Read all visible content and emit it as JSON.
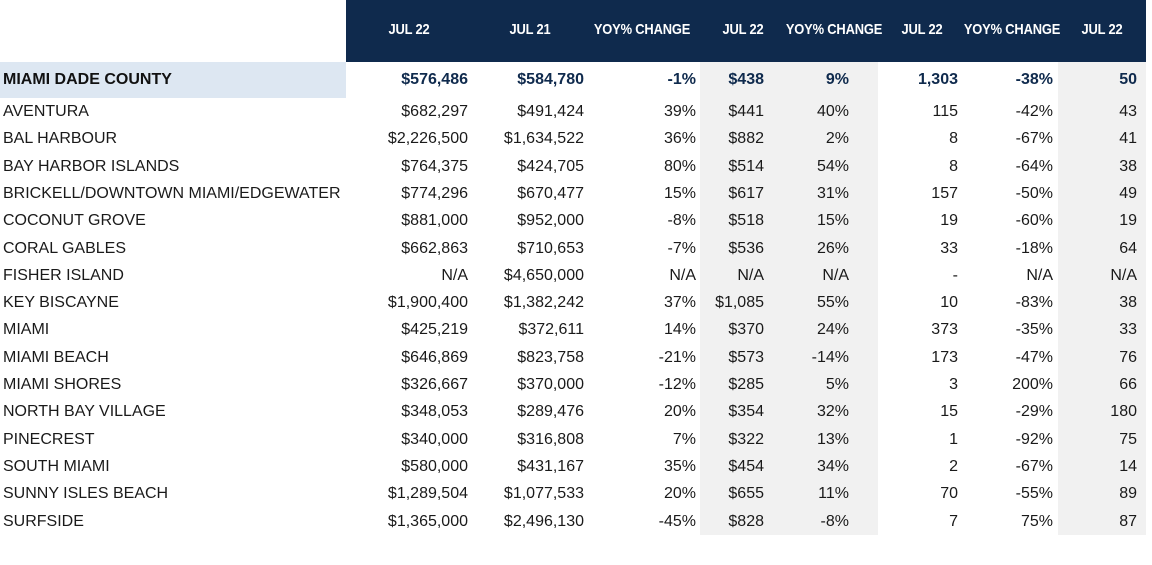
{
  "header": [
    "JUL 22",
    "JUL 21",
    "YOY% CHANGE",
    "JUL 22",
    "YOY% CHANGE",
    "JUL 22",
    "YOY% CHANGE",
    "JUL 22"
  ],
  "county": {
    "name": "MIAMI DADE COUNTY",
    "values": [
      "$576,486",
      "$584,780",
      "-1%",
      "$438",
      "9%",
      "1,303",
      "-38%",
      "50"
    ]
  },
  "rows": [
    {
      "name": "AVENTURA",
      "values": [
        "$682,297",
        "$491,424",
        "39%",
        "$441",
        "40%",
        "115",
        "-42%",
        "43"
      ]
    },
    {
      "name": "BAL HARBOUR",
      "values": [
        "$2,226,500",
        "$1,634,522",
        "36%",
        "$882",
        "2%",
        "8",
        "-67%",
        "41"
      ]
    },
    {
      "name": "BAY HARBOR ISLANDS",
      "values": [
        "$764,375",
        "$424,705",
        "80%",
        "$514",
        "54%",
        "8",
        "-64%",
        "38"
      ]
    },
    {
      "name": "BRICKELL/DOWNTOWN MIAMI/EDGEWATER",
      "values": [
        "$774,296",
        "$670,477",
        "15%",
        "$617",
        "31%",
        "157",
        "-50%",
        "49"
      ]
    },
    {
      "name": "COCONUT GROVE",
      "values": [
        "$881,000",
        "$952,000",
        "-8%",
        "$518",
        "15%",
        "19",
        "-60%",
        "19"
      ]
    },
    {
      "name": "CORAL GABLES",
      "values": [
        "$662,863",
        "$710,653",
        "-7%",
        "$536",
        "26%",
        "33",
        "-18%",
        "64"
      ]
    },
    {
      "name": "FISHER ISLAND",
      "values": [
        "N/A",
        "$4,650,000",
        "N/A",
        "N/A",
        "N/A",
        "-",
        "N/A",
        "N/A"
      ]
    },
    {
      "name": "KEY BISCAYNE",
      "values": [
        "$1,900,400",
        "$1,382,242",
        "37%",
        "$1,085",
        "55%",
        "10",
        "-83%",
        "38"
      ]
    },
    {
      "name": "MIAMI",
      "values": [
        "$425,219",
        "$372,611",
        "14%",
        "$370",
        "24%",
        "373",
        "-35%",
        "33"
      ]
    },
    {
      "name": "MIAMI BEACH",
      "values": [
        "$646,869",
        "$823,758",
        "-21%",
        "$573",
        "-14%",
        "173",
        "-47%",
        "76"
      ]
    },
    {
      "name": "MIAMI SHORES",
      "values": [
        "$326,667",
        "$370,000",
        "-12%",
        "$285",
        "5%",
        "3",
        "200%",
        "66"
      ]
    },
    {
      "name": "NORTH BAY VILLAGE",
      "values": [
        "$348,053",
        "$289,476",
        "20%",
        "$354",
        "32%",
        "15",
        "-29%",
        "180"
      ]
    },
    {
      "name": "PINECREST",
      "values": [
        "$340,000",
        "$316,808",
        "7%",
        "$322",
        "13%",
        "1",
        "-92%",
        "75"
      ]
    },
    {
      "name": "SOUTH MIAMI",
      "values": [
        "$580,000",
        "$431,167",
        "35%",
        "$454",
        "34%",
        "2",
        "-67%",
        "14"
      ]
    },
    {
      "name": "SUNNY ISLES BEACH",
      "values": [
        "$1,289,504",
        "$1,077,533",
        "20%",
        "$655",
        "11%",
        "70",
        "-55%",
        "89"
      ]
    },
    {
      "name": "SURFSIDE",
      "values": [
        "$1,365,000",
        "$2,496,130",
        "-45%",
        "$828",
        "-8%",
        "7",
        "75%",
        "87"
      ]
    }
  ]
}
